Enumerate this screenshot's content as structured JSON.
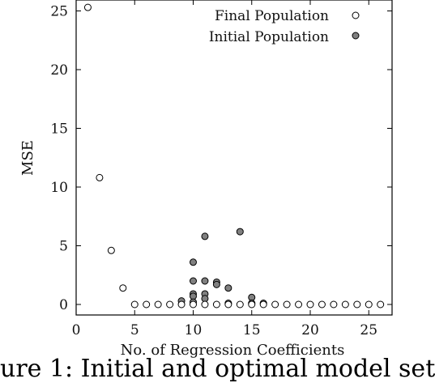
{
  "chart_data": {
    "type": "scatter",
    "xlabel": "No. of Regression Coefficients",
    "ylabel": "MSE",
    "xlim": [
      0,
      27
    ],
    "ylim": [
      -1,
      26
    ],
    "xticks": [
      0,
      5,
      10,
      15,
      20,
      25
    ],
    "yticks": [
      0,
      5,
      10,
      15,
      20,
      25
    ],
    "legend_position": "top-right",
    "series": [
      {
        "name": "Final Population",
        "marker": "open-circle",
        "color": "#ffffff",
        "x": [
          1,
          2,
          3,
          4,
          5,
          6,
          7,
          8,
          9,
          10,
          11,
          12,
          13,
          14,
          15,
          16,
          17,
          18,
          19,
          20,
          21,
          22,
          23,
          24,
          25,
          26
        ],
        "y": [
          25.3,
          10.8,
          4.6,
          1.4,
          0,
          0,
          0,
          0,
          0,
          0,
          0,
          0,
          0,
          0,
          0,
          0,
          0,
          0,
          0,
          0,
          0,
          0,
          0,
          0,
          0,
          0
        ]
      },
      {
        "name": "Initial Population",
        "marker": "filled-circle",
        "color": "#808080",
        "x": [
          9,
          10,
          10,
          10,
          10,
          10,
          11,
          11,
          11,
          11,
          12,
          12,
          13,
          13,
          14,
          15,
          15,
          16
        ],
        "y": [
          0.3,
          3.6,
          2.0,
          0.9,
          0.7,
          0.2,
          5.8,
          2.0,
          0.9,
          0.5,
          1.9,
          1.7,
          1.4,
          0.1,
          6.2,
          0.6,
          0.1,
          0.1
        ]
      }
    ]
  },
  "caption": {
    "text": "ure 1: Initial and optimal model set"
  }
}
